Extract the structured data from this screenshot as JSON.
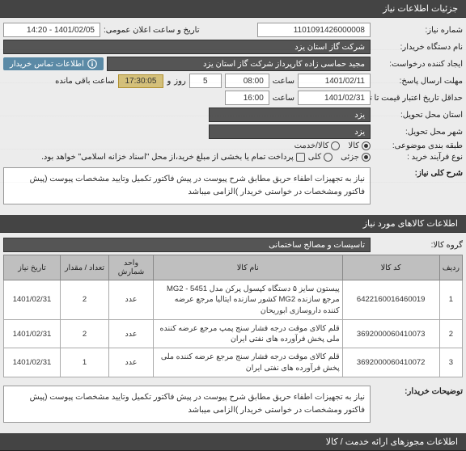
{
  "headers": {
    "need_details": "جزئیات اطلاعات نیاز",
    "items_info": "اطلاعات کالاهای مورد نیاز",
    "permits": "اطلاعات مجوزهای ارائه خدمت / کالا"
  },
  "labels": {
    "need_no": "شماره نیاز:",
    "ann_date": "تاریخ و ساعت اعلان عمومی:",
    "buyer_name": "نام دستگاه خریدار:",
    "requester": "ایجاد کننده درخواست:",
    "reply_deadline": "مهلت ارسال پاسخ:",
    "time": "ساعت",
    "day": "روز",
    "remain": "ساعت باقی مانده",
    "min_valid": "حداقل تاریخ اعتبار قیمت تا تاریخ:",
    "delivery_prov": "استان محل تحویل:",
    "delivery_city": "شهر محل تحویل:",
    "subject_cat": "طبقه بندی موضوعی:",
    "goods": "کالا",
    "service": "کالا/خدمت",
    "buy_type": "نوع فرآیند خرید :",
    "partial": "جزئی",
    "full": "کلی",
    "pay_note": "پرداخت تمام یا بخشی از مبلغ خرید،از محل \"اسناد خزانه اسلامی\" خواهد بود.",
    "main_desc": "شرح کلی نیاز:",
    "goods_group": "گروه کالا:",
    "buyer_notes": "توضیحات خریدار:"
  },
  "values": {
    "need_no": "1101091426000008",
    "ann_date": "1401/02/05 - 14:20",
    "buyer_name": "شرکت گاز استان یزد",
    "requester": "مجید حماسی زاده کارپرداز شرکت گاز استان یزد",
    "contact_badge": "اطلاعات تماس خریدار",
    "deadline_date": "1401/02/11",
    "deadline_time": "08:00",
    "reply_days": "5",
    "countdown": "17:30:05",
    "valid_date": "1401/02/31",
    "valid_time": "16:00",
    "province": "یزد",
    "city": "یزد",
    "main_desc": "نیاز به تجهیزات اطفاء حریق مطابق شرح پیوست در پیش فاکتور تکمیل وتایید مشخصات پیوست (پیش فاکتور ومشخصات در خواستی خریدار )الزامی میباشد",
    "goods_group": "تاسیسات و مصالح ساختمانی",
    "buyer_notes": "نیاز به تجهیزات اطفاء حریق مطابق شرح پیوست در پیش فاکتور تکمیل وتایید مشخصات پیوست (پیش فاکتور ومشخصات در خواستی خریدار )الزامی میباشد"
  },
  "table": {
    "cols": [
      "ردیف",
      "کد کالا",
      "نام کالا",
      "واحد شمارش",
      "تعداد / مقدار",
      "تاریخ نیاز"
    ],
    "rows": [
      [
        "1",
        "6422160016460019",
        "پیستون سایز ۵ دستگاه کپسول پرکن مدل MG2 - 5451 مرجع سازنده MG2 کشور سازنده ایتالیا مرجع عرضه کننده داروسازی ابوریحان",
        "عدد",
        "2",
        "1401/02/31"
      ],
      [
        "2",
        "3692000060410073",
        "قلم کالای موقت درجه فشار سنج پمپ مرجع عرضه کننده ملی پخش فرآورده های نفتی ایران",
        "عدد",
        "2",
        "1401/02/31"
      ],
      [
        "3",
        "3692000060410072",
        "قلم کالای موقت درجه فشار سنج مرجع عرضه کننده ملی پخش فرآورده های نفتی ایران",
        "عدد",
        "1",
        "1401/02/31"
      ]
    ]
  }
}
